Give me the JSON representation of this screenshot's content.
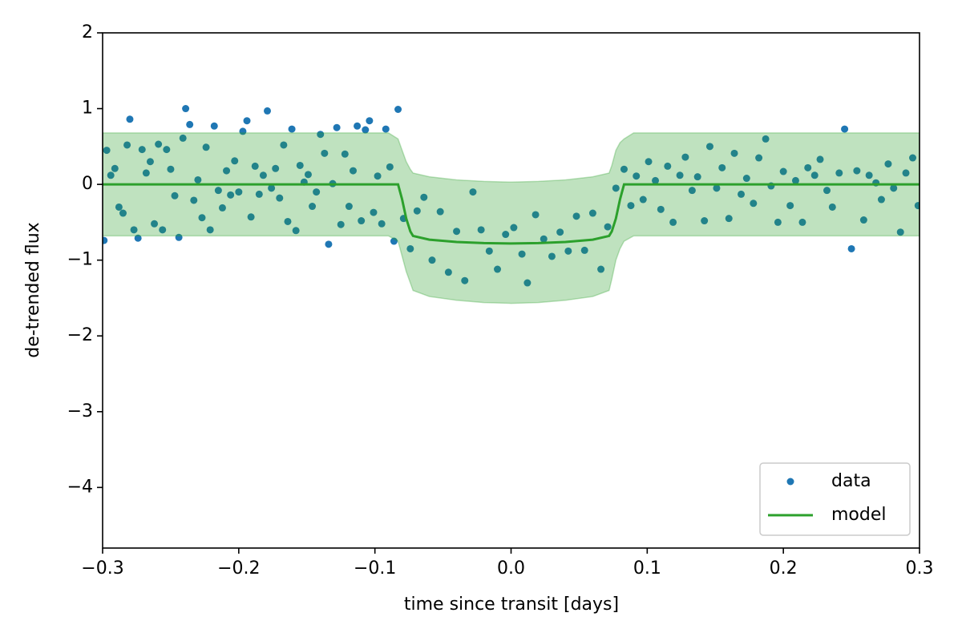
{
  "chart_data": {
    "type": "scatter",
    "xlabel": "time since transit [days]",
    "ylabel": "de-trended flux",
    "xlim": [
      -0.3,
      0.3
    ],
    "ylim": [
      -4.8,
      2
    ],
    "xticks": [
      {
        "value": -0.3,
        "label": "−0.3"
      },
      {
        "value": -0.2,
        "label": "−0.2"
      },
      {
        "value": -0.1,
        "label": "−0.1"
      },
      {
        "value": 0,
        "label": "0.0"
      },
      0.1,
      0.2,
      0.3
    ],
    "yticks": [
      {
        "value": -4,
        "label": "−4"
      },
      {
        "value": -3,
        "label": "−3"
      },
      {
        "value": -2,
        "label": "−2"
      },
      {
        "value": -1,
        "label": "−1"
      },
      0,
      1,
      2
    ],
    "legend": "lower right",
    "series": [
      {
        "name": "data",
        "type": "scatter",
        "color": "#1f77b4",
        "x": [
          -0.299,
          -0.297,
          -0.294,
          -0.291,
          -0.288,
          -0.285,
          -0.282,
          -0.28,
          -0.277,
          -0.274,
          -0.271,
          -0.268,
          -0.265,
          -0.262,
          -0.259,
          -0.256,
          -0.253,
          -0.25,
          -0.247,
          -0.244,
          -0.241,
          -0.239,
          -0.236,
          -0.233,
          -0.23,
          -0.227,
          -0.224,
          -0.221,
          -0.218,
          -0.215,
          -0.212,
          -0.209,
          -0.206,
          -0.203,
          -0.2,
          -0.197,
          -0.194,
          -0.191,
          -0.188,
          -0.185,
          -0.182,
          -0.179,
          -0.176,
          -0.173,
          -0.17,
          -0.167,
          -0.164,
          -0.161,
          -0.158,
          -0.155,
          -0.152,
          -0.149,
          -0.146,
          -0.143,
          -0.14,
          -0.137,
          -0.134,
          -0.131,
          -0.128,
          -0.125,
          -0.122,
          -0.119,
          -0.116,
          -0.113,
          -0.11,
          -0.107,
          -0.104,
          -0.101,
          -0.098,
          -0.095,
          -0.092,
          -0.089,
          -0.086,
          -0.083,
          -0.079,
          -0.074,
          -0.069,
          -0.064,
          -0.058,
          -0.052,
          -0.046,
          -0.04,
          -0.034,
          -0.028,
          -0.022,
          -0.016,
          -0.01,
          -0.004,
          0.002,
          0.008,
          0.012,
          0.018,
          0.024,
          0.03,
          0.036,
          0.042,
          0.048,
          0.054,
          0.06,
          0.066,
          0.071,
          0.077,
          0.083,
          0.088,
          0.092,
          0.097,
          0.101,
          0.106,
          0.11,
          0.115,
          0.119,
          0.124,
          0.128,
          0.133,
          0.137,
          0.142,
          0.146,
          0.151,
          0.155,
          0.16,
          0.164,
          0.169,
          0.173,
          0.178,
          0.182,
          0.187,
          0.191,
          0.196,
          0.2,
          0.205,
          0.209,
          0.214,
          0.218,
          0.223,
          0.227,
          0.232,
          0.236,
          0.241,
          0.245,
          0.25,
          0.254,
          0.259,
          0.263,
          0.268,
          0.272,
          0.277,
          0.281,
          0.286,
          0.29,
          0.295,
          0.299
        ],
        "values": [
          -0.74,
          0.45,
          0.12,
          0.21,
          -0.3,
          -0.38,
          0.52,
          0.86,
          -0.6,
          -0.71,
          0.46,
          0.15,
          0.3,
          -0.52,
          0.53,
          -0.6,
          0.46,
          0.2,
          -0.15,
          -0.7,
          0.61,
          1.0,
          0.79,
          -0.21,
          0.06,
          -0.44,
          0.49,
          -0.6,
          0.77,
          -0.08,
          -0.31,
          0.18,
          -0.14,
          0.31,
          -0.1,
          0.7,
          0.84,
          -0.43,
          0.24,
          -0.13,
          0.12,
          0.97,
          -0.05,
          0.21,
          -0.18,
          0.52,
          -0.49,
          0.73,
          -0.61,
          0.25,
          0.03,
          0.13,
          -0.29,
          -0.1,
          0.66,
          0.41,
          -0.79,
          0.01,
          0.75,
          -0.53,
          0.4,
          -0.29,
          0.18,
          0.77,
          -0.48,
          0.72,
          0.84,
          -0.37,
          0.11,
          -0.52,
          0.73,
          0.23,
          -0.75,
          0.99,
          -0.45,
          -0.85,
          -0.35,
          -0.17,
          -1.0,
          -0.36,
          -1.16,
          -0.62,
          -1.27,
          -0.1,
          -0.6,
          -0.88,
          -1.12,
          -0.66,
          -0.57,
          -0.92,
          -1.3,
          -0.4,
          -0.72,
          -0.95,
          -0.63,
          -0.88,
          -0.42,
          -0.87,
          -0.38,
          -1.12,
          -0.56,
          -0.05,
          0.2,
          -0.28,
          0.11,
          -0.2,
          0.3,
          0.05,
          -0.33,
          0.24,
          -0.5,
          0.12,
          0.36,
          -0.08,
          0.1,
          -0.48,
          0.5,
          -0.05,
          0.22,
          -0.45,
          0.41,
          -0.13,
          0.08,
          -0.25,
          0.35,
          0.6,
          -0.02,
          -0.5,
          0.17,
          -0.28,
          0.05,
          -0.5,
          0.22,
          0.12,
          0.33,
          -0.08,
          -0.3,
          0.15,
          0.73,
          -0.85,
          0.18,
          -0.47,
          0.12,
          0.02,
          -0.2,
          0.27,
          -0.05,
          -0.63,
          0.15,
          0.35,
          -0.28
        ]
      },
      {
        "name": "model",
        "type": "line",
        "color": "#2ca02c",
        "x": [
          -0.3,
          -0.09,
          -0.083,
          -0.08,
          -0.077,
          -0.074,
          -0.072,
          -0.06,
          -0.04,
          -0.02,
          0,
          0.02,
          0.04,
          0.06,
          0.072,
          0.074,
          0.077,
          0.08,
          0.083,
          0.09,
          0.3
        ],
        "values": [
          0,
          0,
          0,
          -0.2,
          -0.45,
          -0.62,
          -0.68,
          -0.73,
          -0.76,
          -0.775,
          -0.78,
          -0.775,
          -0.76,
          -0.73,
          -0.68,
          -0.62,
          -0.45,
          -0.2,
          0,
          0,
          0
        ],
        "band_upper": [
          0.68,
          0.68,
          0.6,
          0.45,
          0.3,
          0.2,
          0.15,
          0.1,
          0.06,
          0.04,
          0.03,
          0.04,
          0.06,
          0.1,
          0.15,
          0.25,
          0.45,
          0.55,
          0.6,
          0.68,
          0.68
        ],
        "band_lower": [
          -0.68,
          -0.68,
          -0.75,
          -0.95,
          -1.15,
          -1.3,
          -1.4,
          -1.48,
          -1.53,
          -1.56,
          -1.57,
          -1.56,
          -1.53,
          -1.48,
          -1.4,
          -1.25,
          -1.0,
          -0.85,
          -0.75,
          -0.68,
          -0.68
        ]
      }
    ]
  }
}
